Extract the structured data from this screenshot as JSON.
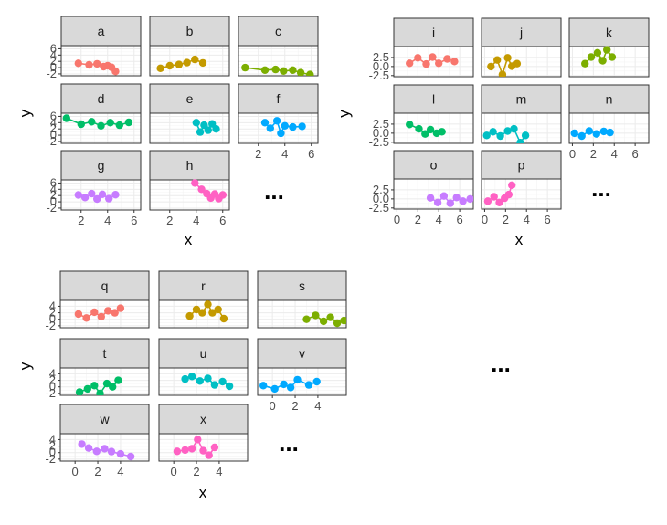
{
  "chart_data": [
    {
      "type": "scatter",
      "xlabel": "x",
      "ylabel": "y",
      "xlim": [
        0.5,
        6.5
      ],
      "ylim": [
        -2.6,
        7
      ],
      "x_ticks": [
        "2",
        "4",
        "6"
      ],
      "x_tick_values": [
        2,
        4,
        6
      ],
      "y_ticks": [
        "-2",
        "0",
        "2",
        "4",
        "6"
      ],
      "y_tick_values": [
        -2,
        0,
        2,
        4,
        6
      ],
      "ellipsis": "...",
      "grid": true,
      "panels": [
        {
          "label": "a",
          "color": "#F8766D",
          "x": [
            1.8,
            2.6,
            3.2,
            3.7,
            4.0,
            4.3,
            4.6
          ],
          "y": [
            1.4,
            0.9,
            1.2,
            0.3,
            0.6,
            0.1,
            -1.2
          ]
        },
        {
          "label": "b",
          "color": "#C49A00",
          "x": [
            1.3,
            2.0,
            2.7,
            3.3,
            3.9,
            4.5
          ],
          "y": [
            -0.2,
            0.6,
            1.0,
            1.6,
            2.6,
            1.5
          ]
        },
        {
          "label": "c",
          "color": "#7CAE00",
          "x": [
            1.0,
            2.5,
            3.3,
            3.9,
            4.6,
            5.2,
            5.9
          ],
          "y": [
            0.0,
            -0.8,
            -0.6,
            -1.1,
            -0.8,
            -1.6,
            -2.2
          ]
        },
        {
          "label": "d",
          "color": "#00BE67",
          "x": [
            0.9,
            2.0,
            2.8,
            3.5,
            4.2,
            4.9,
            5.6
          ],
          "y": [
            5.4,
            3.5,
            4.3,
            3.0,
            4.0,
            3.2,
            4.1
          ]
        },
        {
          "label": "e",
          "color": "#00BFC4",
          "x": [
            4.0,
            4.3,
            4.6,
            4.9,
            5.2,
            5.5
          ],
          "y": [
            4.0,
            1.0,
            3.2,
            1.6,
            3.6,
            2.0
          ]
        },
        {
          "label": "f",
          "color": "#00A9FF",
          "x": [
            2.5,
            2.9,
            3.4,
            3.7,
            4.0,
            4.6,
            5.3
          ],
          "y": [
            4.0,
            2.2,
            4.6,
            0.6,
            3.0,
            2.6,
            2.8
          ]
        },
        {
          "label": "g",
          "color": "#C77CFF",
          "x": [
            1.8,
            2.3,
            2.8,
            3.2,
            3.6,
            4.1,
            4.6
          ],
          "y": [
            2.2,
            1.4,
            2.6,
            0.9,
            2.4,
            1.0,
            2.3
          ]
        },
        {
          "label": "h",
          "color": "#FF61C3",
          "x": [
            3.9,
            4.4,
            4.8,
            5.1,
            5.4,
            5.7,
            6.0
          ],
          "y": [
            6.0,
            4.0,
            2.6,
            1.2,
            2.5,
            1.0,
            2.2
          ]
        }
      ]
    },
    {
      "type": "scatter",
      "xlabel": "x",
      "ylabel": "y",
      "xlim": [
        -0.3,
        7.3
      ],
      "ylim": [
        -2.8,
        5.5
      ],
      "x_ticks": [
        "0",
        "2",
        "4",
        "6"
      ],
      "x_tick_values": [
        0,
        2,
        4,
        6
      ],
      "y_ticks": [
        "-2.5",
        "0.0",
        "2.5"
      ],
      "y_tick_values": [
        -2.5,
        0.0,
        2.5
      ],
      "ellipsis": "...",
      "grid": true,
      "panels": [
        {
          "label": "i",
          "color": "#F8766D",
          "x": [
            1.2,
            2.0,
            2.8,
            3.4,
            4.0,
            4.8,
            5.5
          ],
          "y": [
            0.9,
            2.4,
            0.7,
            2.6,
            0.9,
            2.1,
            1.4
          ]
        },
        {
          "label": "j",
          "color": "#C49A00",
          "x": [
            0.6,
            1.2,
            1.7,
            2.2,
            2.6,
            3.1
          ],
          "y": [
            0.0,
            1.8,
            -2.2,
            2.4,
            0.1,
            0.8
          ]
        },
        {
          "label": "k",
          "color": "#7CAE00",
          "x": [
            1.2,
            1.8,
            2.4,
            2.9,
            3.3,
            3.8
          ],
          "y": [
            0.8,
            2.6,
            3.8,
            1.6,
            4.6,
            2.6
          ]
        },
        {
          "label": "l",
          "color": "#00BE67",
          "x": [
            1.2,
            2.1,
            2.7,
            3.2,
            3.8,
            4.3
          ],
          "y": [
            2.4,
            1.2,
            -0.2,
            1.0,
            0.0,
            0.4
          ]
        },
        {
          "label": "m",
          "color": "#00BFC4",
          "x": [
            0.2,
            0.8,
            1.5,
            2.2,
            2.8,
            3.4,
            3.9
          ],
          "y": [
            -0.6,
            0.4,
            -0.8,
            0.6,
            1.2,
            -2.6,
            -0.6
          ]
        },
        {
          "label": "n",
          "color": "#00A9FF",
          "x": [
            0.2,
            0.9,
            1.6,
            2.3,
            3.0,
            3.6
          ],
          "y": [
            0.0,
            -0.8,
            0.6,
            -0.2,
            0.5,
            0.2
          ]
        },
        {
          "label": "o",
          "color": "#C77CFF",
          "x": [
            3.2,
            3.9,
            4.5,
            5.1,
            5.7,
            6.3,
            7.0
          ],
          "y": [
            0.3,
            -1.0,
            0.8,
            -1.2,
            0.4,
            -0.6,
            0.0
          ]
        },
        {
          "label": "p",
          "color": "#FF61C3",
          "x": [
            0.3,
            0.9,
            1.4,
            1.9,
            2.3,
            2.6
          ],
          "y": [
            -0.6,
            0.6,
            -1.0,
            0.2,
            1.2,
            3.8
          ]
        }
      ]
    },
    {
      "type": "scatter",
      "xlabel": "x",
      "ylabel": "y",
      "xlim": [
        -1.3,
        6.5
      ],
      "ylim": [
        -2.6,
        5.8
      ],
      "x_ticks": [
        "0",
        "2",
        "4"
      ],
      "x_tick_values": [
        0,
        2,
        4
      ],
      "y_ticks": [
        "-2",
        "0",
        "2",
        "4"
      ],
      "y_tick_values": [
        -2,
        0,
        2,
        4
      ],
      "ellipsis": "...",
      "grid": true,
      "panels": [
        {
          "label": "q",
          "color": "#F8766D",
          "x": [
            0.3,
            1.0,
            1.7,
            2.3,
            2.9,
            3.5,
            4.0
          ],
          "y": [
            1.6,
            0.4,
            2.2,
            0.8,
            2.6,
            2.0,
            3.4
          ]
        },
        {
          "label": "r",
          "color": "#C49A00",
          "x": [
            1.4,
            2.0,
            2.5,
            3.0,
            3.4,
            3.9,
            4.4
          ],
          "y": [
            1.0,
            3.0,
            2.0,
            4.6,
            2.0,
            3.0,
            0.2
          ]
        },
        {
          "label": "s",
          "color": "#7CAE00",
          "x": [
            3.0,
            3.8,
            4.5,
            5.1,
            5.7,
            6.3
          ],
          "y": [
            0.0,
            1.2,
            -0.6,
            0.6,
            -1.2,
            -0.4
          ]
        },
        {
          "label": "t",
          "color": "#00BE67",
          "x": [
            0.4,
            1.1,
            1.7,
            2.2,
            2.8,
            3.3,
            3.8
          ],
          "y": [
            -1.6,
            -0.6,
            0.4,
            -2.0,
            1.0,
            0.0,
            2.0
          ]
        },
        {
          "label": "u",
          "color": "#00BFC4",
          "x": [
            1.0,
            1.6,
            2.3,
            3.0,
            3.6,
            4.3,
            4.9
          ],
          "y": [
            2.4,
            3.2,
            1.8,
            2.6,
            0.6,
            1.6,
            0.2
          ]
        },
        {
          "label": "v",
          "color": "#00A9FF",
          "x": [
            -0.8,
            0.2,
            1.0,
            1.6,
            2.2,
            3.2,
            3.9
          ],
          "y": [
            0.4,
            -0.6,
            0.8,
            -0.2,
            2.2,
            0.6,
            1.6
          ]
        },
        {
          "label": "w",
          "color": "#C77CFF",
          "x": [
            0.6,
            1.2,
            1.9,
            2.6,
            3.2,
            4.0,
            4.9
          ],
          "y": [
            2.6,
            1.4,
            0.4,
            1.2,
            0.3,
            -0.4,
            -1.2
          ]
        },
        {
          "label": "x",
          "color": "#FF61C3",
          "x": [
            0.3,
            1.0,
            1.6,
            2.1,
            2.6,
            3.1,
            3.6
          ],
          "y": [
            0.4,
            0.8,
            1.2,
            4.0,
            0.6,
            -0.8,
            1.6
          ]
        }
      ]
    }
  ]
}
